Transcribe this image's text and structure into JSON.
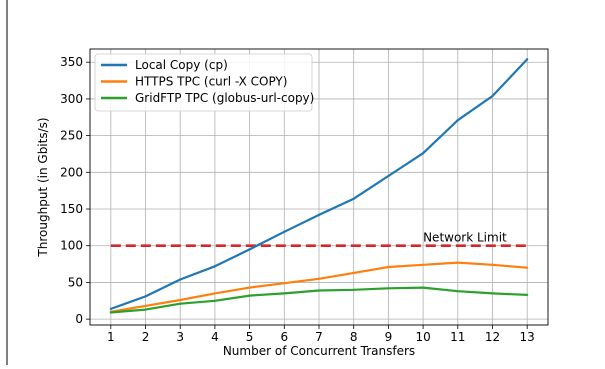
{
  "chart_data": {
    "type": "line",
    "title": "",
    "xlabel": "Number of Concurrent Transfers",
    "ylabel": "Throughput (in Gbits/s)",
    "x": [
      1,
      2,
      3,
      4,
      5,
      6,
      7,
      8,
      9,
      10,
      11,
      12,
      13
    ],
    "xticks": [
      "1",
      "2",
      "3",
      "4",
      "5",
      "6",
      "7",
      "8",
      "9",
      "10",
      "11",
      "12",
      "13"
    ],
    "yticks": [
      0,
      50,
      100,
      150,
      200,
      250,
      300,
      350
    ],
    "ytick_labels": [
      "0",
      "50",
      "100",
      "150",
      "200",
      "250",
      "300",
      "350"
    ],
    "xlim": [
      0.4,
      13.6
    ],
    "ylim": [
      -8,
      368
    ],
    "grid": true,
    "legend_position": "top-left",
    "series": [
      {
        "name": "Local Copy (cp)",
        "color": "#1f77b4",
        "values": [
          14,
          31,
          54,
          72,
          95,
          119,
          142,
          164,
          195,
          226,
          271,
          304,
          354
        ]
      },
      {
        "name": "HTTPS TPC (curl -X COPY)",
        "color": "#ff7f0e",
        "values": [
          10,
          18,
          26,
          35,
          43,
          49,
          55,
          63,
          71,
          74,
          77,
          74,
          70
        ]
      },
      {
        "name": "GridFTP TPC (globus-url-copy)",
        "color": "#2ca02c",
        "values": [
          9,
          13,
          21,
          25,
          32,
          35,
          39,
          40,
          42,
          43,
          38,
          35,
          33
        ]
      }
    ],
    "reference_line": {
      "label": "Network Limit",
      "value": 100,
      "x_start": 1,
      "x_end": 13,
      "color": "#d62728",
      "style": "dashed"
    }
  }
}
